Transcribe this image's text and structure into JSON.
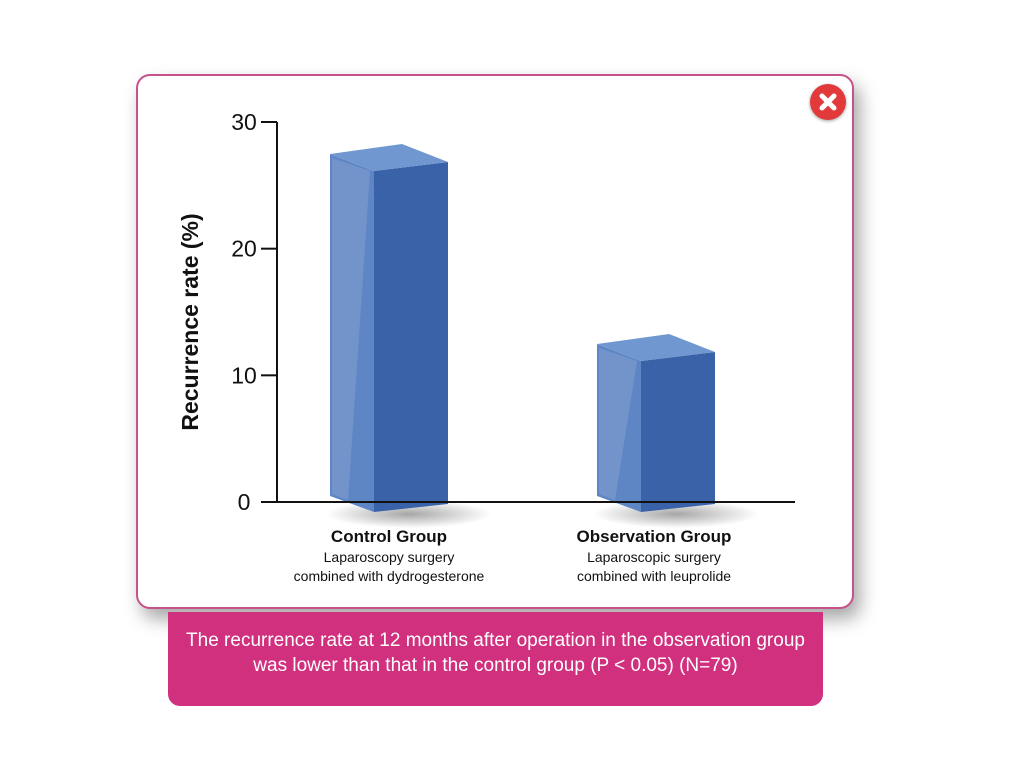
{
  "popup": {
    "close_label": "Close"
  },
  "chart_data": {
    "type": "bar",
    "categories": [
      "Control Group",
      "Observation Group"
    ],
    "category_sublabels": [
      [
        "Laparoscopy surgery",
        "combined with dydrogesterone"
      ],
      [
        "Laparoscopic surgery",
        "combined with leuprolide"
      ]
    ],
    "values": [
      27,
      12
    ],
    "ylabel": "Recurrence rate (%)",
    "xlabel": "",
    "ylim": [
      0,
      30
    ],
    "yticks": [
      0,
      10,
      20,
      30
    ],
    "grid": false,
    "bar_color": "#3a62a8"
  },
  "caption": {
    "text": "The recurrence rate at 12 months after operation in the observation group was lower than that in the control group (P < 0.05) (N=79)"
  },
  "colors": {
    "accent": "#d0307e",
    "border": "#c7518a",
    "close": "#e23a3a"
  }
}
